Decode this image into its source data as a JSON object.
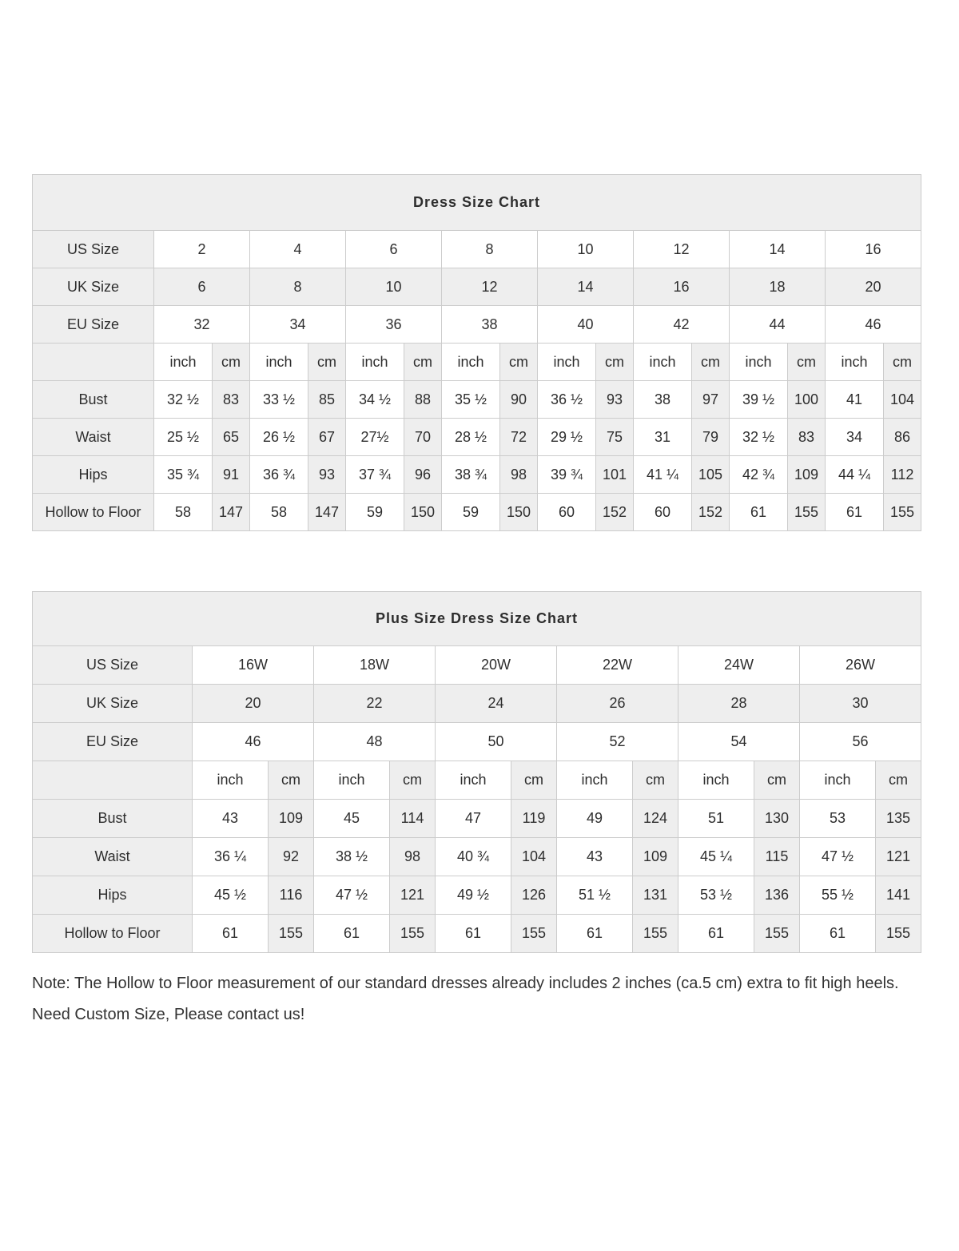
{
  "colors": {
    "header_fill": "#eeeeee",
    "border": "#cccccc",
    "text": "#2e2e2e"
  },
  "unit_labels": {
    "inch": "inch",
    "cm": "cm"
  },
  "tables": [
    {
      "title": "Dress Size Chart",
      "size_rows": [
        {
          "label": "US Size",
          "values": [
            "2",
            "4",
            "6",
            "8",
            "10",
            "12",
            "14",
            "16"
          ]
        },
        {
          "label": "UK Size",
          "values": [
            "6",
            "8",
            "10",
            "12",
            "14",
            "16",
            "18",
            "20"
          ]
        },
        {
          "label": "EU Size",
          "values": [
            "32",
            "34",
            "36",
            "38",
            "40",
            "42",
            "44",
            "46"
          ]
        }
      ],
      "measure_rows": [
        {
          "label": "Bust",
          "inch": [
            "32 ½",
            "33 ½",
            "34 ½",
            "35 ½",
            "36 ½",
            "38",
            "39 ½",
            "41"
          ],
          "cm": [
            "83",
            "85",
            "88",
            "90",
            "93",
            "97",
            "100",
            "104"
          ]
        },
        {
          "label": "Waist",
          "inch": [
            "25 ½",
            "26 ½",
            "27½",
            "28 ½",
            "29 ½",
            "31",
            "32 ½",
            "34"
          ],
          "cm": [
            "65",
            "67",
            "70",
            "72",
            "75",
            "79",
            "83",
            "86"
          ]
        },
        {
          "label": "Hips",
          "inch": [
            "35 ¾",
            "36 ¾",
            "37 ¾",
            "38 ¾",
            "39 ¾",
            "41 ¼",
            "42 ¾",
            "44 ¼"
          ],
          "cm": [
            "91",
            "93",
            "96",
            "98",
            "101",
            "105",
            "109",
            "112"
          ]
        },
        {
          "label": "Hollow to Floor",
          "inch": [
            "58",
            "58",
            "59",
            "59",
            "60",
            "60",
            "61",
            "61"
          ],
          "cm": [
            "147",
            "147",
            "150",
            "150",
            "152",
            "152",
            "155",
            "155"
          ]
        }
      ]
    },
    {
      "title": "Plus Size Dress Size Chart",
      "size_rows": [
        {
          "label": "US Size",
          "values": [
            "16W",
            "18W",
            "20W",
            "22W",
            "24W",
            "26W"
          ]
        },
        {
          "label": "UK Size",
          "values": [
            "20",
            "22",
            "24",
            "26",
            "28",
            "30"
          ]
        },
        {
          "label": "EU Size",
          "values": [
            "46",
            "48",
            "50",
            "52",
            "54",
            "56"
          ]
        }
      ],
      "measure_rows": [
        {
          "label": "Bust",
          "inch": [
            "43",
            "45",
            "47",
            "49",
            "51",
            "53"
          ],
          "cm": [
            "109",
            "114",
            "119",
            "124",
            "130",
            "135"
          ]
        },
        {
          "label": "Waist",
          "inch": [
            "36 ¼",
            "38 ½",
            "40 ¾",
            "43",
            "45 ¼",
            "47 ½"
          ],
          "cm": [
            "92",
            "98",
            "104",
            "109",
            "115",
            "121"
          ]
        },
        {
          "label": "Hips",
          "inch": [
            "45 ½",
            "47 ½",
            "49 ½",
            "51 ½",
            "53 ½",
            "55 ½"
          ],
          "cm": [
            "116",
            "121",
            "126",
            "131",
            "136",
            "141"
          ]
        },
        {
          "label": "Hollow to Floor",
          "inch": [
            "61",
            "61",
            "61",
            "61",
            "61",
            "61"
          ],
          "cm": [
            "155",
            "155",
            "155",
            "155",
            "155",
            "155"
          ]
        }
      ]
    }
  ],
  "note": {
    "line1": "Note: The Hollow to Floor measurement of our standard dresses already includes 2 inches (ca.5 cm) extra to fit high heels.",
    "line2": "Need Custom Size, Please contact us!"
  }
}
